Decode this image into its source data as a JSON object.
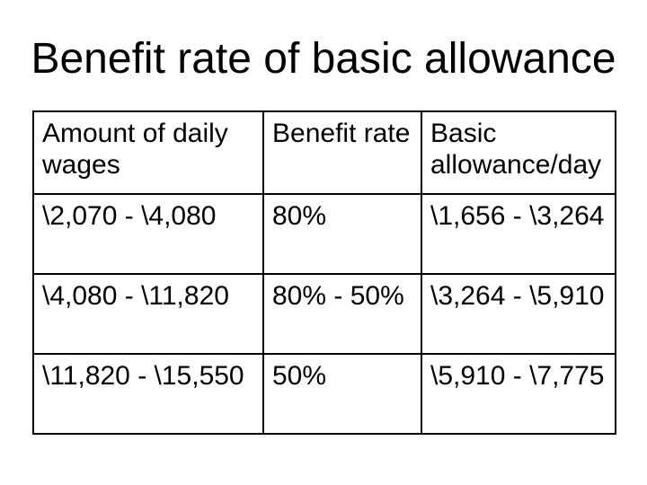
{
  "slide": {
    "title": "Benefit rate of basic allowance",
    "background_color": "#ffffff",
    "text_color": "#000000",
    "table_border_color": "#000000"
  },
  "chart_data": {
    "type": "table",
    "title": "Benefit rate of basic allowance",
    "columns": [
      "Amount of daily wages",
      "Benefit rate",
      "Basic allowance/day"
    ],
    "rows": [
      [
        "\\2,070 - \\4,080",
        "80%",
        "\\1,656 - \\3,264"
      ],
      [
        "\\4,080 - \\11,820",
        "80% - 50%",
        "\\3,264 - \\5,910"
      ],
      [
        "\\11,820 - \\15,550",
        "50%",
        "\\5,910 - \\7,775"
      ]
    ],
    "notes": "currency symbol rendered as backslash (won sign fallback); grid on; black 2px borders; text top-left aligned in cells"
  }
}
